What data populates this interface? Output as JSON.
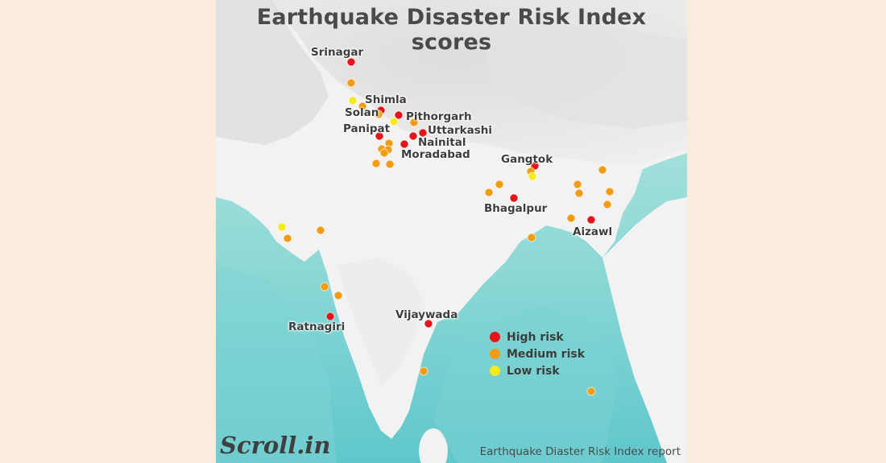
{
  "title": "Earthquake Disaster Risk Index scores",
  "labels": {
    "srinagar": "Srinagar",
    "shimla": "Shimla",
    "solan": "Solan",
    "pithorgarh": "Pithorgarh",
    "panipat": "Panipat",
    "uttarkashi": "Uttarkashi",
    "nainital": "Nainital",
    "moradabad": "Moradabad",
    "gangtok": "Gangtok",
    "bhagalpur": "Bhagalpur",
    "aizawl": "Aizawl",
    "ratnagiri": "Ratnagiri",
    "vijaywada": "Vijaywada"
  },
  "legend": [
    {
      "label": "High risk",
      "color": "#e4141b"
    },
    {
      "label": "Medium risk",
      "color": "#f39c12"
    },
    {
      "label": "Low risk",
      "color": "#f7ea1a"
    }
  ],
  "colors": {
    "high": "#e4141b",
    "medium": "#f39c12",
    "low": "#f7ea1a",
    "sea_light": "#a7e2df",
    "sea_dark": "#6fcfd0",
    "land": "#f2f2f2",
    "page_bg": "#f9ecdc"
  },
  "logo": "Scroll.in",
  "source": "Earthquake Diaster Risk Index report"
}
